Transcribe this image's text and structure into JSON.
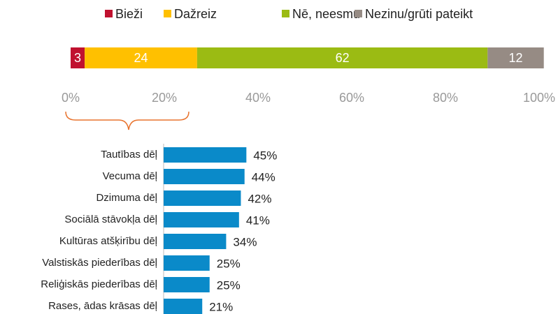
{
  "chart_data": [
    {
      "type": "stacked_bar",
      "series": [
        {
          "name": "Bieži",
          "color": "#c0112f",
          "values": [
            3
          ]
        },
        {
          "name": "Dažreiz",
          "color": "#ffc000",
          "values": [
            24
          ]
        },
        {
          "name": "Nē, neesmu",
          "color": "#9bbb13",
          "values": [
            62
          ]
        },
        {
          "name": "Nezinu/grūti pateikt",
          "color": "#968b84",
          "values": [
            12
          ]
        }
      ],
      "xlim": [
        0,
        100
      ],
      "xticks": [
        {
          "value": 0,
          "label": "0%"
        },
        {
          "value": 20,
          "label": "20%"
        },
        {
          "value": 40,
          "label": "40%"
        },
        {
          "value": 60,
          "label": "60%"
        },
        {
          "value": 80,
          "label": "80%"
        },
        {
          "value": 100,
          "label": "100%"
        }
      ],
      "legend": "top"
    },
    {
      "type": "bar",
      "categories": [
        "Tautības dēļ",
        "Vecuma dēļ",
        "Dzimuma dēļ",
        "Sociālā stāvokļa dēļ",
        "Kultūras atšķirību dēļ",
        "Valstiskās piederības dēļ",
        "Reliģiskās piederības dēļ",
        "Rases, ādas krāsas dēļ"
      ],
      "values": [
        45,
        44,
        42,
        41,
        34,
        25,
        25,
        21
      ],
      "value_labels": [
        "45%",
        "44%",
        "42%",
        "41%",
        "34%",
        "25%",
        "25%",
        "21%"
      ],
      "color": "#0a8ac9"
    }
  ]
}
